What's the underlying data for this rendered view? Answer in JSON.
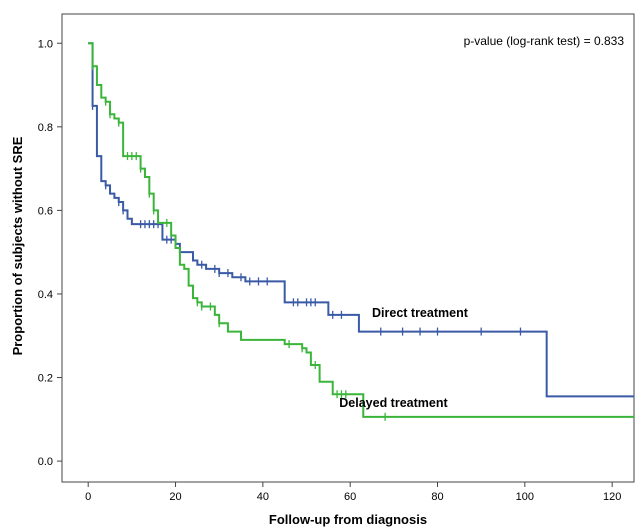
{
  "chart_data": {
    "type": "line",
    "subtype": "kaplan-meier",
    "title": "",
    "xlabel": "Follow-up from diagnosis",
    "ylabel": "Proportion of subjects without SRE",
    "xlim": [
      -6,
      125
    ],
    "ylim": [
      -0.05,
      1.07
    ],
    "xticks": [
      0,
      20,
      40,
      60,
      80,
      100,
      120
    ],
    "yticks": [
      0.0,
      0.2,
      0.4,
      0.6,
      0.8,
      1.0
    ],
    "ytick_labels": [
      "0.0",
      "0.2",
      "0.4",
      "0.6",
      "0.8",
      "1.0"
    ],
    "grid": false,
    "annotation": "p-value (log-rank test) = 0.833",
    "series": [
      {
        "name": "Direct treatment",
        "color": "#3a5aa6",
        "x": [
          0,
          1,
          2,
          3,
          4,
          5,
          6,
          7,
          8,
          9,
          10,
          17,
          20,
          21,
          24,
          25,
          26,
          27,
          30,
          33,
          36,
          40,
          45,
          55,
          62,
          100,
          105,
          125
        ],
        "y": [
          1.0,
          0.85,
          0.73,
          0.67,
          0.66,
          0.64,
          0.63,
          0.62,
          0.6,
          0.58,
          0.567,
          0.53,
          0.52,
          0.5,
          0.48,
          0.47,
          0.47,
          0.46,
          0.45,
          0.44,
          0.43,
          0.43,
          0.38,
          0.35,
          0.31,
          0.31,
          0.155,
          0.155
        ],
        "censor_x": [
          1,
          4,
          7,
          8,
          12,
          13,
          14,
          15,
          16,
          18,
          19,
          26,
          29,
          30,
          32,
          35,
          37,
          39,
          41,
          47,
          48,
          50,
          51,
          52,
          56,
          58,
          67,
          72,
          76,
          80,
          90,
          99
        ],
        "label": "Direct treatment"
      },
      {
        "name": "Delayed treatment",
        "color": "#3ab53a",
        "x": [
          0,
          1,
          2,
          3,
          4,
          5,
          6,
          7,
          8,
          12,
          13,
          14,
          15,
          16,
          19,
          20,
          21,
          22,
          23,
          24,
          25,
          26,
          29,
          30,
          32,
          35,
          45,
          49,
          50,
          51,
          53,
          56,
          63,
          125
        ],
        "y": [
          1.0,
          0.945,
          0.9,
          0.87,
          0.86,
          0.83,
          0.82,
          0.81,
          0.73,
          0.7,
          0.68,
          0.64,
          0.6,
          0.57,
          0.54,
          0.51,
          0.47,
          0.46,
          0.42,
          0.39,
          0.38,
          0.37,
          0.35,
          0.33,
          0.31,
          0.29,
          0.28,
          0.27,
          0.26,
          0.23,
          0.19,
          0.16,
          0.106,
          0.106
        ],
        "censor_x": [
          1,
          4,
          5,
          7,
          9,
          10,
          11,
          12,
          14,
          15,
          18,
          25,
          26,
          28,
          30,
          46,
          49,
          52,
          57,
          58,
          59,
          68
        ],
        "label": "Delayed treatment"
      }
    ]
  }
}
